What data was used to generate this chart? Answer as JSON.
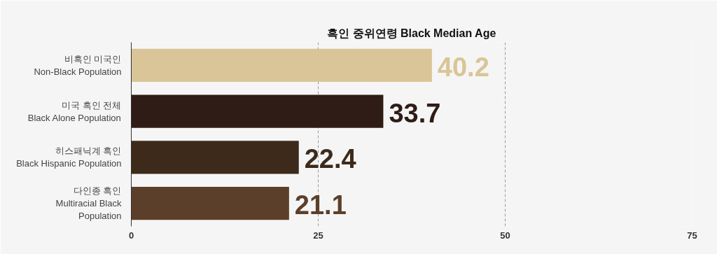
{
  "chart_data": {
    "type": "bar",
    "orientation": "horizontal",
    "title": "흑인 중위연령 Black Median Age",
    "categories": [
      "비흑인 미국인\nNon-Black Population",
      "미국 흑인 전체\nBlack Alone Population",
      "히스패닉계 흑인\nBlack Hispanic Population",
      "다인종 흑인\nMultiracial Black\nPopulation"
    ],
    "values": [
      40.2,
      33.7,
      22.4,
      21.1
    ],
    "colors": [
      "#d9c597",
      "#2f1c16",
      "#3d2a1a",
      "#5c3f2a"
    ],
    "xlim": [
      0,
      75
    ],
    "xticks": [
      0,
      25,
      50,
      75
    ],
    "grid": "x",
    "line_style": "dashed",
    "data_labels": true
  }
}
